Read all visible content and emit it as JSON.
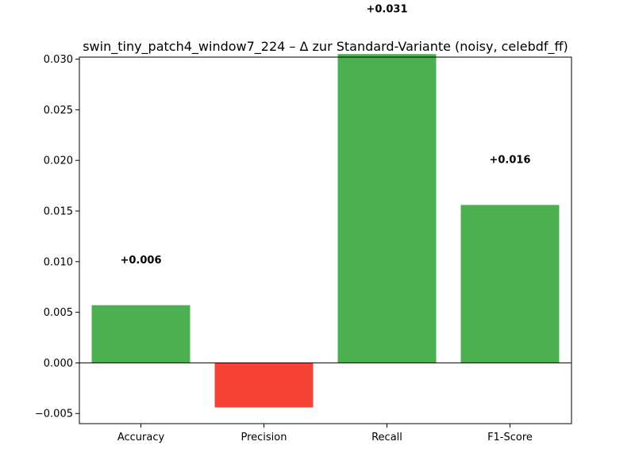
{
  "chart_data": {
    "type": "bar",
    "title": "swin_tiny_patch4_window7_224 – Δ zur Standard-Variante (noisy, celebdf_ff)",
    "xlabel": "",
    "ylabel": "",
    "categories": [
      "Accuracy",
      "Precision",
      "Recall",
      "F1-Score"
    ],
    "values": [
      0.0057,
      -0.0044,
      0.0305,
      0.0156
    ],
    "data_labels": [
      "+0.006",
      "",
      "+0.031",
      "+0.016"
    ],
    "ylim": [
      -0.006,
      0.0302
    ],
    "yticks": [
      -0.005,
      0.0,
      0.005,
      0.01,
      0.015,
      0.02,
      0.025,
      0.03
    ],
    "ytick_labels": [
      "−0.005",
      "0.000",
      "0.005",
      "0.010",
      "0.015",
      "0.020",
      "0.025",
      "0.030"
    ],
    "colors": {
      "positive": "#4caf50",
      "negative": "#f44336",
      "axis": "#000000"
    },
    "grid": false,
    "legend": "none"
  }
}
